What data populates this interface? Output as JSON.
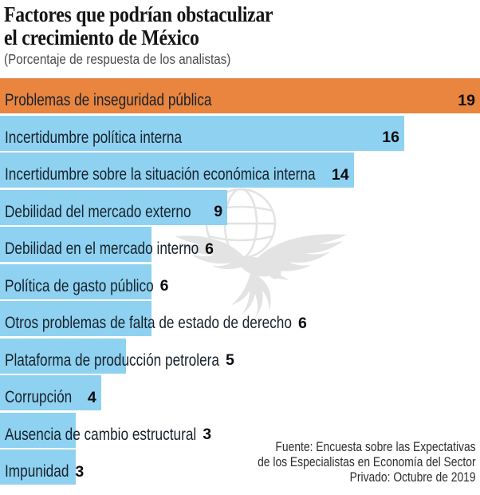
{
  "title": {
    "line1": "Factores que podrían obstaculizar",
    "line2": "el crecimiento de México"
  },
  "subtitle": "(Porcentaje de respuesta de los analistas)",
  "chart_data": {
    "type": "bar",
    "orientation": "horizontal",
    "title": "Factores que podrían obstaculizar el crecimiento de México",
    "subtitle": "(Porcentaje de respuesta de los analistas)",
    "categories": [
      "Problemas de inseguridad pública",
      "Incertidumbre política interna",
      "Incertidumbre sobre la situación económica interna",
      "Debilidad del mercado externo",
      "Debilidad en el mercado interno",
      "Política de gasto público",
      "Otros problemas de falta de estado de derecho",
      "Plataforma de producción petrolera",
      "Corrupción",
      "Ausencia de cambio estructural",
      "Impunidad"
    ],
    "values": [
      19,
      16,
      14,
      9,
      6,
      6,
      6,
      5,
      4,
      3,
      3
    ],
    "xlim": [
      0,
      19
    ],
    "grid": false,
    "legend": "none",
    "value_labels": "shown-bold-at-bar-end",
    "highlight_index": 0,
    "colors": {
      "highlight": "#E9853F",
      "default": "#8FD1F0",
      "category_label": "#17222C",
      "value_label": "#0B0B12"
    }
  },
  "source": {
    "line1": "Fuente: Encuesta sobre las Expectativas",
    "line2": "de los Especialistas en Economía del Sector",
    "line3": "Privado: Octubre de 2019"
  },
  "watermark": {
    "name": "el-universal-eagle-globe",
    "color": "#E3E3E3"
  }
}
